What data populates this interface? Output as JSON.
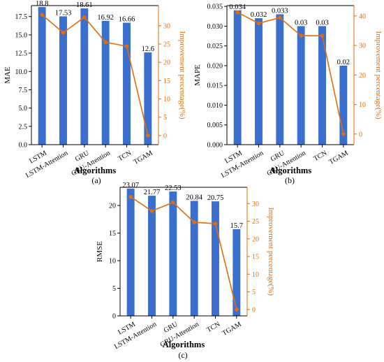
{
  "colors": {
    "bar": "#3a6fce",
    "line": "#e46c0a",
    "axis": "#000000"
  },
  "chart_data": [
    {
      "type": "bar",
      "panel": "(a)",
      "categories": [
        "LSTM",
        "LSTM-Attention",
        "GRU",
        "GRU-Attention",
        "TCN",
        "TGAM"
      ],
      "values": [
        18.8,
        17.53,
        18.61,
        16.92,
        16.66,
        12.6
      ],
      "value_labels": [
        "18.8",
        "17.53",
        "18.61",
        "16.92",
        "16.66",
        "12.6"
      ],
      "ylabel": "MAE",
      "ylim": [
        0,
        19.0
      ],
      "yticks": [
        0.0,
        2.5,
        5.0,
        7.5,
        10.0,
        12.5,
        15.0,
        17.5
      ],
      "ytick_labels": [
        "0.0",
        "2.5",
        "5.0",
        "7.5",
        "10.0",
        "12.5",
        "15.0",
        "17.5"
      ],
      "xlabel": "Algorithms",
      "secondary": {
        "type": "line",
        "ylabel": "Improvement percentage(%)",
        "values": [
          33.0,
          28.1,
          32.3,
          25.5,
          24.4,
          0
        ],
        "ylim": [
          -2.5,
          35.5
        ],
        "yticks": [
          0,
          5,
          10,
          15,
          20,
          25,
          30
        ],
        "ytick_labels": [
          "0",
          "5",
          "10",
          "15",
          "20",
          "25",
          "30"
        ]
      }
    },
    {
      "type": "bar",
      "panel": "(b)",
      "categories": [
        "LSTM",
        "LSTM-Attention",
        "GRU",
        "GRU-Attention",
        "TCN",
        "TGAM"
      ],
      "values": [
        0.034,
        0.032,
        0.033,
        0.03,
        0.03,
        0.02
      ],
      "value_labels": [
        "0.034",
        "0.032",
        "0.033",
        "0.03",
        "0.03",
        "0.02"
      ],
      "ylabel": "MAPE",
      "ylim": [
        0,
        0.0352
      ],
      "yticks": [
        0.0,
        0.005,
        0.01,
        0.015,
        0.02,
        0.025,
        0.03,
        0.035
      ],
      "ytick_labels": [
        "0.000",
        "0.005",
        "0.010",
        "0.015",
        "0.020",
        "0.025",
        "0.030",
        "0.035"
      ],
      "xlabel": "Algorithms",
      "secondary": {
        "type": "line",
        "ylabel": "Improvement percentage(%)",
        "values": [
          41.2,
          37.5,
          39.4,
          33.3,
          33.3,
          0
        ],
        "ylim": [
          -3.6,
          43.5
        ],
        "yticks": [
          0,
          10,
          20,
          30,
          40
        ],
        "ytick_labels": [
          "0",
          "10",
          "20",
          "30",
          "40"
        ]
      }
    },
    {
      "type": "bar",
      "panel": "(c)",
      "categories": [
        "LSTM",
        "LSTM-Attention",
        "GRU",
        "GRU-Attention",
        "TCN",
        "TGAM"
      ],
      "values": [
        23.07,
        21.77,
        22.53,
        20.84,
        20.75,
        15.7
      ],
      "value_labels": [
        "23.07",
        "21.77",
        "22.53",
        "20.84",
        "20.75",
        "15.7"
      ],
      "ylabel": "RMSE",
      "ylim": [
        0,
        23.3
      ],
      "yticks": [
        0,
        5,
        10,
        15,
        20
      ],
      "ytick_labels": [
        "0",
        "5",
        "10",
        "15",
        "20"
      ],
      "xlabel": "Algorithms",
      "secondary": {
        "type": "line",
        "ylabel": "Improvement percentage(%)",
        "values": [
          31.9,
          27.9,
          30.3,
          24.7,
          24.3,
          0
        ],
        "ylim": [
          -1.8,
          34.6
        ],
        "yticks": [
          0,
          5,
          10,
          15,
          20,
          25,
          30
        ],
        "ytick_labels": [
          "0",
          "5",
          "10",
          "15",
          "20",
          "25",
          "30"
        ]
      }
    }
  ]
}
